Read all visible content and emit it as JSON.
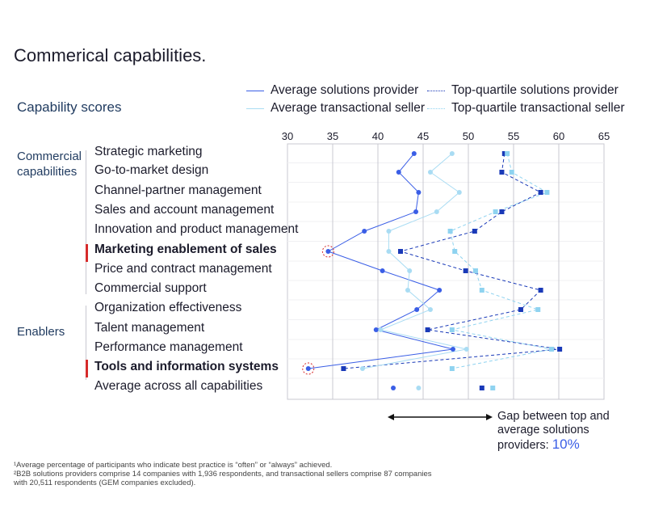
{
  "title": "Commerical capabilities.",
  "subtitle": "Capability scores",
  "legend": [
    {
      "label": "Average solutions provider",
      "color": "#3a5ee6",
      "dash": "solid"
    },
    {
      "label": "Top-quartile solutions provider",
      "color": "#1a3ab8",
      "dash": "dotted"
    },
    {
      "label": "Average transactional seller",
      "color": "#a9dcf3",
      "dash": "solid"
    },
    {
      "label": "Top-quartile transactional seller",
      "color": "#8fd3f0",
      "dash": "dotted"
    }
  ],
  "sections": {
    "commercial": "Commercial capabilities",
    "enablers": "Enablers"
  },
  "gap": {
    "text": "Gap between top and average solutions providers:",
    "value": "10%"
  },
  "footnotes": [
    "¹Average percentage of participants who indicate best practice is “often” or “always” achieved.",
    "²B2B solutions providers comprise 14 companies with 1,936 respondents, and transactional sellers comprise 87 companies",
    " with 20,511 respondents (GEM companies excluded)."
  ],
  "chart_data": {
    "type": "line",
    "orientation": "horizontal-values",
    "xlim": [
      30,
      65
    ],
    "xticks": [
      "30",
      "35",
      "40",
      "45",
      "50",
      "55",
      "60",
      "65"
    ],
    "categories": [
      "Strategic marketing",
      "Go-to-market design",
      "Channel-partner management",
      "Sales and account management",
      "Innovation and product management",
      "Marketing enablement of sales",
      "Price and contract management",
      "Commercial support",
      "Organization effectiveness",
      "Talent management",
      "Performance management",
      "Tools and information systems",
      "Average across all capabilities"
    ],
    "highlighted": [
      "Marketing enablement of sales",
      "Tools and information systems"
    ],
    "series": [
      {
        "name": "Average solutions provider",
        "color": "#3a5ee6",
        "marker": "circle",
        "connected": true,
        "values": [
          44.0,
          42.3,
          44.5,
          44.2,
          38.5,
          34.5,
          40.5,
          46.8,
          44.3,
          39.8,
          48.3,
          32.3,
          41.7
        ]
      },
      {
        "name": "Top-quartile solutions provider",
        "color": "#1a3ab8",
        "marker": "square",
        "connected": true,
        "values": [
          54.0,
          53.7,
          58.0,
          53.7,
          50.7,
          42.5,
          49.7,
          58.0,
          55.8,
          45.5,
          60.1,
          36.2,
          51.5
        ]
      },
      {
        "name": "Average transactional seller",
        "color": "#a9dcf3",
        "marker": "circle",
        "connected": true,
        "values": [
          48.2,
          45.8,
          49.0,
          46.5,
          41.2,
          41.2,
          43.5,
          43.3,
          45.8,
          40.3,
          49.8,
          38.3,
          44.5
        ]
      },
      {
        "name": "Top-quartile transactional seller",
        "color": "#8fd3f0",
        "marker": "square",
        "connected": true,
        "values": [
          54.3,
          54.8,
          58.7,
          53.0,
          48.0,
          48.5,
          50.8,
          51.5,
          57.7,
          48.2,
          59.2,
          48.2,
          52.7
        ]
      }
    ]
  }
}
